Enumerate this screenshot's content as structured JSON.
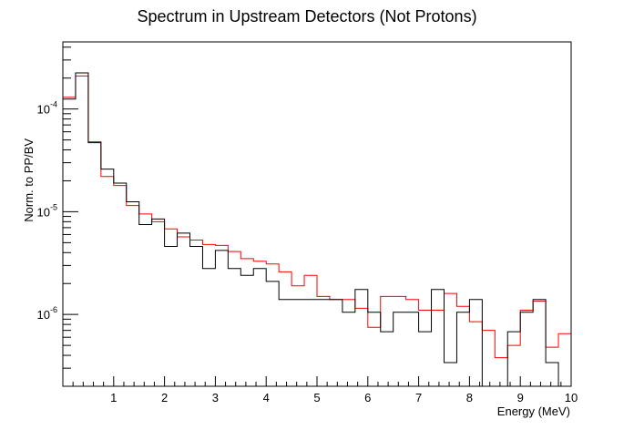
{
  "chart_data": {
    "type": "line",
    "title": "Spectrum in Upstream Detectors (Not Protons)",
    "xlabel": "Energy (MeV)",
    "ylabel": "Norm. to PP/BV",
    "xlim": [
      0.0,
      10.0
    ],
    "ylim": [
      2e-07,
      0.00045
    ],
    "yscale": "log",
    "grid": false,
    "bin_width": 0.25,
    "x_ticks": [
      "1",
      "2",
      "3",
      "4",
      "5",
      "6",
      "7",
      "8",
      "9",
      "10"
    ],
    "y_ticks": [
      {
        "value": 1e-06,
        "base": "10",
        "exp": "-6"
      },
      {
        "value": 1e-05,
        "base": "10",
        "exp": "-5"
      },
      {
        "value": 0.0001,
        "base": "10",
        "exp": "-4"
      }
    ],
    "series": [
      {
        "color": "#ff0000",
        "bin_edges": [
          0.0,
          0.25,
          0.5,
          0.75,
          1.0,
          1.25,
          1.5,
          1.75,
          2.0,
          2.25,
          2.5,
          2.75,
          3.0,
          3.25,
          3.5,
          3.75,
          4.0,
          4.25,
          4.5,
          4.75,
          5.0,
          5.25,
          5.5,
          5.75,
          6.0,
          6.25,
          6.5,
          6.75,
          7.0,
          7.25,
          7.5,
          7.75,
          8.0,
          8.25,
          8.5,
          8.75,
          9.0,
          9.25,
          9.5,
          9.75,
          10.0
        ],
        "values": [
          0.00013,
          0.00021,
          4.8e-05,
          2.2e-05,
          1.8e-05,
          1.15e-05,
          9.5e-06,
          8e-06,
          6.8e-06,
          5.7e-06,
          5.3e-06,
          4.8e-06,
          4.7e-06,
          4.1e-06,
          3.5e-06,
          3.3e-06,
          3.1e-06,
          2.6e-06,
          1.9e-06,
          2.4e-06,
          1.5e-06,
          1.4e-06,
          1.4e-06,
          1.15e-06,
          7.5e-07,
          1.5e-06,
          1.5e-06,
          1.4e-06,
          1.1e-06,
          1.1e-06,
          1.6e-06,
          1.2e-06,
          8.5e-07,
          7e-07,
          3.8e-07,
          5e-07,
          1.1e-06,
          1.35e-06,
          4.8e-07,
          6.5e-07
        ]
      },
      {
        "color": "#000000",
        "bin_edges": [
          0.0,
          0.25,
          0.5,
          0.75,
          1.0,
          1.25,
          1.5,
          1.75,
          2.0,
          2.25,
          2.5,
          2.75,
          3.0,
          3.25,
          3.5,
          3.75,
          4.0,
          4.25,
          4.5,
          4.75,
          5.0,
          5.25,
          5.5,
          5.75,
          6.0,
          6.25,
          6.5,
          6.75,
          7.0,
          7.25,
          7.5,
          7.75,
          8.0,
          8.25,
          8.5,
          8.75,
          9.0,
          9.25,
          9.5,
          9.75,
          10.0
        ],
        "values": [
          0.000125,
          0.000225,
          4.7e-05,
          2.6e-05,
          1.9e-05,
          1.25e-05,
          7.5e-06,
          8.5e-06,
          4.6e-06,
          6.2e-06,
          4.6e-06,
          2.8e-06,
          4.2e-06,
          2.8e-06,
          2.4e-06,
          2.8e-06,
          2.1e-06,
          1.4e-06,
          1.4e-06,
          1.4e-06,
          1.4e-06,
          1.4e-06,
          1.05e-06,
          1.75e-06,
          1.05e-06,
          6.8e-07,
          1.05e-06,
          1.05e-06,
          6.8e-07,
          1.75e-06,
          3.4e-07,
          1.05e-06,
          1.4e-06,
          1e-07,
          1e-07,
          6.8e-07,
          1.05e-06,
          1.4e-06,
          3.4e-07,
          1e-07
        ]
      }
    ]
  }
}
